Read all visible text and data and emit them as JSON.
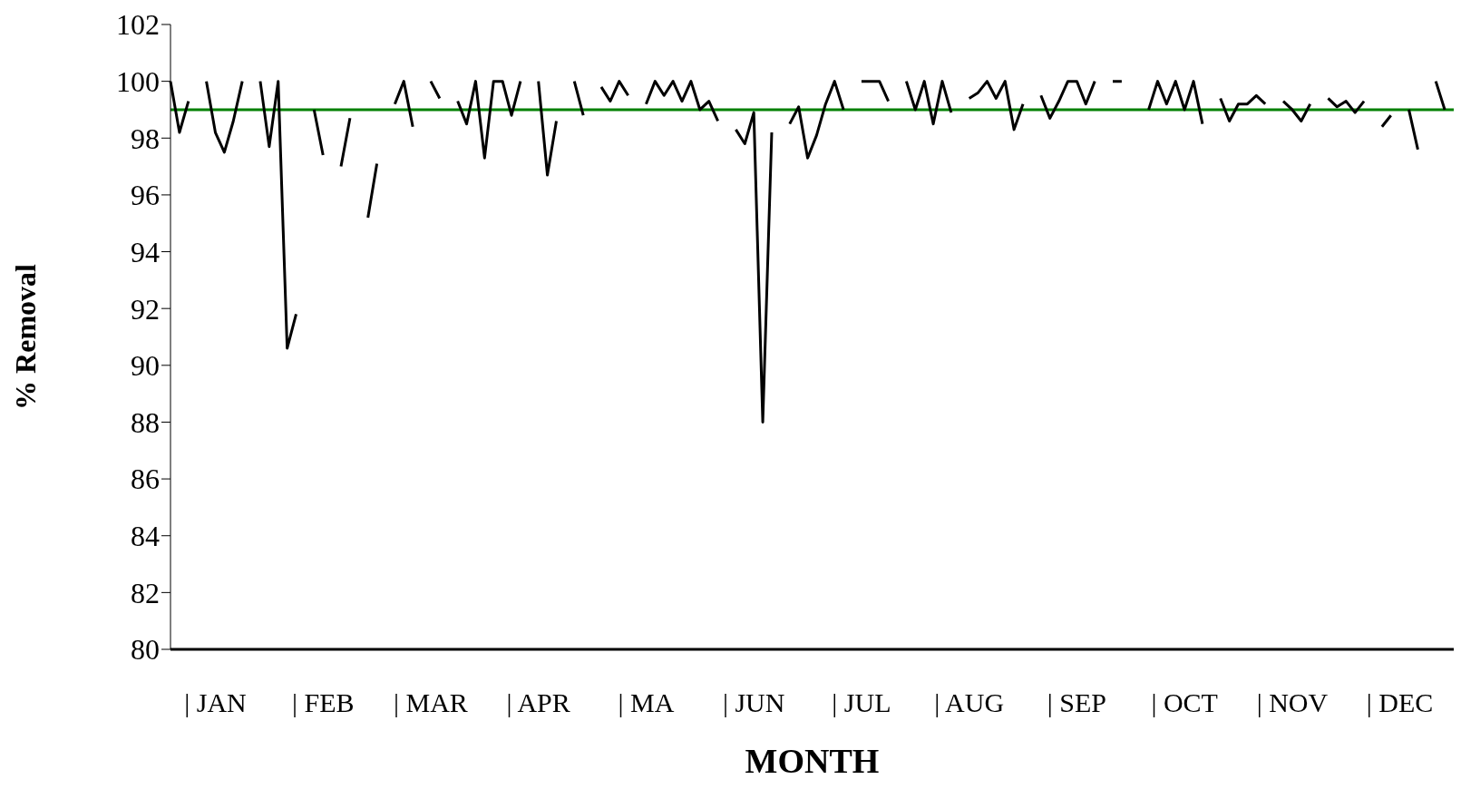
{
  "chart_data": {
    "type": "line",
    "xlabel": "MONTH",
    "ylabel": "% Removal",
    "categories": [
      null,
      null,
      null,
      null,
      null,
      "| JAN",
      null,
      null,
      null,
      null,
      null,
      null,
      null,
      null,
      null,
      null,
      null,
      "| FEB",
      null,
      null,
      null,
      null,
      null,
      null,
      null,
      null,
      null,
      null,
      null,
      "| MAR",
      null,
      null,
      null,
      null,
      null,
      null,
      null,
      null,
      null,
      null,
      null,
      "| APR",
      null,
      null,
      null,
      null,
      null,
      null,
      null,
      null,
      null,
      null,
      null,
      "| MA",
      null,
      null,
      null,
      null,
      null,
      null,
      null,
      null,
      null,
      null,
      null,
      "| JUN",
      null,
      null,
      null,
      null,
      null,
      null,
      null,
      null,
      null,
      null,
      null,
      "| JUL",
      null,
      null,
      null,
      null,
      null,
      null,
      null,
      null,
      null,
      null,
      null,
      "| AUG",
      null,
      null,
      null,
      null,
      null,
      null,
      null,
      null,
      null,
      null,
      null,
      "| SEP",
      null,
      null,
      null,
      null,
      null,
      null,
      null,
      null,
      null,
      null,
      null,
      "| OCT",
      null,
      null,
      null,
      null,
      null,
      null,
      null,
      null,
      null,
      null,
      null,
      "| NOV",
      null,
      null,
      null,
      null,
      null,
      null,
      null,
      null,
      null,
      null,
      null,
      "| DEC",
      null,
      null,
      null,
      null,
      null,
      null
    ],
    "series": [
      {
        "color": "#000000",
        "values": [
          100,
          98.2,
          99.3,
          null,
          100,
          98.2,
          97.5,
          98.6,
          100,
          null,
          100,
          97.7,
          100,
          90.6,
          91.8,
          null,
          99,
          97.4,
          null,
          97,
          98.7,
          null,
          95.2,
          97.1,
          null,
          99.2,
          100,
          98.4,
          null,
          100,
          99.4,
          null,
          99.3,
          98.5,
          100,
          97.3,
          100,
          100,
          98.8,
          100,
          null,
          100,
          96.7,
          98.6,
          null,
          100,
          98.8,
          null,
          99.8,
          99.3,
          100,
          99.5,
          null,
          99.2,
          100,
          99.5,
          100,
          99.3,
          100,
          99,
          99.3,
          98.6,
          null,
          98.3,
          97.8,
          98.9,
          88,
          98.2,
          null,
          98.5,
          99.1,
          97.3,
          98.1,
          99.2,
          100,
          99,
          null,
          100,
          100,
          100,
          99.3,
          null,
          100,
          99,
          100,
          98.5,
          100,
          98.9,
          null,
          99.4,
          99.6,
          100,
          99.4,
          100,
          98.3,
          99.2,
          null,
          99.5,
          98.7,
          99.3,
          100,
          100,
          99.2,
          100,
          null,
          100,
          100,
          null,
          null,
          99,
          100,
          99.2,
          100,
          99,
          100,
          98.5,
          null,
          99.4,
          98.6,
          99.2,
          99.2,
          99.5,
          99.2,
          null,
          99.3,
          99,
          98.6,
          99.2,
          null,
          99.4,
          99.1,
          99.3,
          98.9,
          99.3,
          null,
          98.4,
          98.8,
          null,
          99,
          97.6,
          null,
          100,
          99,
          null
        ]
      }
    ],
    "ylim": [
      80,
      102
    ],
    "yticks": [
      80,
      82,
      84,
      86,
      88,
      90,
      92,
      94,
      96,
      98,
      100,
      102
    ],
    "marker": "none",
    "line_style": "solid",
    "ref_lines": [
      {
        "axis": "y",
        "value": 99,
        "color": "#008000"
      }
    ]
  }
}
